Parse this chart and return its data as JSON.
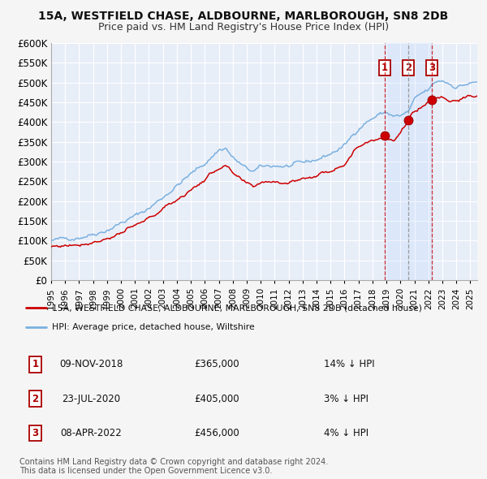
{
  "title1": "15A, WESTFIELD CHASE, ALDBOURNE, MARLBOROUGH, SN8 2DB",
  "title2": "Price paid vs. HM Land Registry's House Price Index (HPI)",
  "ylim": [
    0,
    600000
  ],
  "yticks": [
    0,
    50000,
    100000,
    150000,
    200000,
    250000,
    300000,
    350000,
    400000,
    450000,
    500000,
    550000,
    600000
  ],
  "xlim_start": 1995.0,
  "xlim_end": 2025.5,
  "background_color": "#f5f5f5",
  "plot_bg_color": "#e8eef8",
  "grid_color": "#ffffff",
  "hpi_color": "#7ab0e0",
  "price_color": "#cc0000",
  "sale_marker_color": "#cc0000",
  "vline1_x": 2018.86,
  "vline2_x": 2020.56,
  "vline3_x": 2022.27,
  "sale1_date": "09-NOV-2018",
  "sale1_price": 365000,
  "sale1_hpi_pct": "14%",
  "sale2_date": "23-JUL-2020",
  "sale2_price": 405000,
  "sale2_hpi_pct": "3%",
  "sale3_date": "08-APR-2022",
  "sale3_price": 456000,
  "sale3_hpi_pct": "4%",
  "legend_label_price": "15A, WESTFIELD CHASE, ALDBOURNE, MARLBOROUGH, SN8 2DB (detached house)",
  "legend_label_hpi": "HPI: Average price, detached house, Wiltshire",
  "footer1": "Contains HM Land Registry data © Crown copyright and database right 2024.",
  "footer2": "This data is licensed under the Open Government Licence v3.0."
}
